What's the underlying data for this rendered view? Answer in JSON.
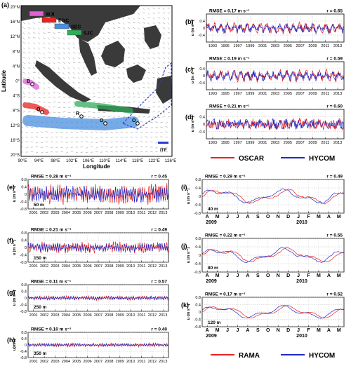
{
  "figure": {
    "colors": {
      "obs": "#e8231f",
      "model": "#1f2ac4",
      "land": "#3a3a3a",
      "sea": "#ffffff",
      "grid": "#b0b0b0"
    },
    "map": {
      "panel_label": "(a)",
      "xlabel": "Longitude",
      "ylabel": "Latitude",
      "lon_ticks": [
        "90°E",
        "94°E",
        "98°E",
        "102°E",
        "106°E",
        "110°E",
        "114°E",
        "118°E",
        "122°E",
        "126°E"
      ],
      "lat_ticks": [
        "20°N",
        "16°N",
        "12°N",
        "8°N",
        "4°N",
        "0°",
        "4°S",
        "8°S",
        "12°S",
        "16°S",
        "20°S"
      ],
      "legend": [
        {
          "label": "WJI",
          "color": "#e060d8"
        },
        {
          "label": "EGC",
          "color": "#e8231f"
        },
        {
          "label": "SEC",
          "color": "#4a8fe0"
        },
        {
          "label": "SJC",
          "color": "#2fae5a"
        }
      ],
      "itf_label": "ITF",
      "markers": [
        "B",
        "O",
        "R",
        "O",
        "O"
      ]
    },
    "top_legend": {
      "obs": "OSCAR",
      "model": "HYCOM"
    },
    "bottom_legend": {
      "obs": "RAMA",
      "model": "HYCOM"
    },
    "yunit": "u (m s⁻¹)",
    "yunit_h": "u(m/s)",
    "years_long": [
      "1993",
      "1995",
      "1997",
      "1999",
      "2001",
      "2003",
      "2005",
      "2007",
      "2009",
      "2011",
      "2013"
    ],
    "years_short": [
      "2001",
      "2002",
      "2003",
      "2004",
      "2005",
      "2006",
      "2007",
      "2008",
      "2009",
      "2010",
      "2011",
      "2012",
      "2013"
    ],
    "months": [
      "A",
      "M",
      "J",
      "J",
      "A",
      "S",
      "O",
      "N",
      "D",
      "J",
      "F",
      "M",
      "A",
      "M"
    ],
    "month_years": [
      "2009",
      "2010"
    ]
  },
  "chart_data": [
    {
      "id": "b",
      "type": "line",
      "label": "(b)",
      "rmse": "RMSE = 0.17 m s⁻¹",
      "r": "r = 0.65",
      "ylim": [
        -0.8,
        0.8
      ],
      "yticks": [
        "0.4",
        "0",
        "-0.4"
      ],
      "xlim": [
        1993,
        2014
      ],
      "series": [
        {
          "name": "OSCAR",
          "amp": 0.24,
          "freq": 2.0,
          "seed": 3
        },
        {
          "name": "HYCOM",
          "amp": 0.2,
          "freq": 2.0,
          "seed": 11
        }
      ]
    },
    {
      "id": "c",
      "type": "line",
      "label": "(c)",
      "rmse": "RMSE = 0.19 m s⁻¹",
      "r": "r = 0.59",
      "ylim": [
        -0.8,
        0.8
      ],
      "yticks": [
        "0.4",
        "0",
        "-0.4"
      ],
      "xlim": [
        1993,
        2014
      ],
      "series": [
        {
          "name": "OSCAR",
          "amp": 0.26,
          "freq": 2.0,
          "seed": 5
        },
        {
          "name": "HYCOM",
          "amp": 0.22,
          "freq": 2.0,
          "seed": 17
        }
      ]
    },
    {
      "id": "d",
      "type": "line",
      "label": "(d)",
      "rmse": "RMSE = 0.21 m s⁻¹",
      "r": "r = 0.60",
      "ylim": [
        -0.8,
        0.8
      ],
      "yticks": [
        "0.4",
        "0",
        "-0.4"
      ],
      "xlim": [
        1993,
        2014
      ],
      "series": [
        {
          "name": "OSCAR",
          "amp": 0.3,
          "freq": 2.0,
          "seed": 7
        },
        {
          "name": "HYCOM",
          "amp": 0.26,
          "freq": 2.0,
          "seed": 19
        }
      ]
    },
    {
      "id": "e",
      "type": "line",
      "label": "(e)",
      "rmse": "RMSE = 0.28 m s⁻¹",
      "r": "r = 0.45",
      "depth": "50 m",
      "ylim": [
        -0.8,
        0.8
      ],
      "yticks": [
        "0.8",
        "0.4",
        "0",
        "-0.4",
        "-0.8"
      ],
      "xlim": [
        2001,
        2014
      ],
      "series": [
        {
          "name": "RAMA",
          "amp": 0.42,
          "freq": 6.0,
          "seed": 23
        },
        {
          "name": "HYCOM",
          "amp": 0.32,
          "freq": 6.0,
          "seed": 29
        }
      ]
    },
    {
      "id": "f",
      "type": "line",
      "label": "(f)",
      "rmse": "RMSE = 0.21 m s⁻¹",
      "r": "r = 0.49",
      "depth": "150 m",
      "ylim": [
        -0.8,
        0.8
      ],
      "yticks": [
        "0.8",
        "0.4",
        "0",
        "-0.4",
        "-0.8"
      ],
      "xlim": [
        2001,
        2014
      ],
      "series": [
        {
          "name": "RAMA",
          "amp": 0.22,
          "freq": 6.0,
          "seed": 31
        },
        {
          "name": "HYCOM",
          "amp": 0.18,
          "freq": 6.0,
          "seed": 37
        }
      ]
    },
    {
      "id": "g",
      "type": "line",
      "label": "(g)",
      "rmse": "RMSE = 0.11 m s⁻¹",
      "r": "r = 0.57",
      "depth": "250 m",
      "ylim": [
        -0.8,
        0.8
      ],
      "yticks": [
        "0.8",
        "0.4",
        "0",
        "-0.4",
        "-0.8"
      ],
      "xlim": [
        2001,
        2014
      ],
      "series": [
        {
          "name": "RAMA",
          "amp": 0.1,
          "freq": 6.0,
          "seed": 41
        },
        {
          "name": "HYCOM",
          "amp": 0.08,
          "freq": 6.0,
          "seed": 43
        }
      ]
    },
    {
      "id": "h",
      "type": "line",
      "label": "(h)",
      "rmse": "RMSE = 0.10 m s⁻¹",
      "r": "r = 0.40",
      "depth": "350 m",
      "ylim": [
        -0.8,
        0.8
      ],
      "yticks": [
        "0.8",
        "0.4",
        "0",
        "-0.4",
        "-0.8"
      ],
      "xlim": [
        2001,
        2014
      ],
      "series": [
        {
          "name": "RAMA",
          "amp": 0.09,
          "freq": 6.0,
          "seed": 47
        },
        {
          "name": "HYCOM",
          "amp": 0.07,
          "freq": 6.0,
          "seed": 53
        }
      ]
    },
    {
      "id": "i",
      "type": "line",
      "label": "(i)",
      "rmse": "RMSE = 0.29 m s⁻¹",
      "r": "r = 0.49",
      "depth": "40 m",
      "ylim": [
        -0.8,
        0.8
      ],
      "yticks": [
        "0.8",
        "0.4",
        "0",
        "-0.4",
        "-0.8"
      ],
      "xlim": [
        0,
        14
      ],
      "series": [
        {
          "name": "RAMA",
          "amp": 0.3,
          "freq": 0.0,
          "seed": 59
        },
        {
          "name": "HYCOM",
          "amp": 0.26,
          "freq": 0.0,
          "seed": 61
        }
      ]
    },
    {
      "id": "j",
      "type": "line",
      "label": "(j)",
      "rmse": "RMSE = 0.22 m s⁻¹",
      "r": "r = 0.55",
      "depth": "80 m",
      "ylim": [
        -0.8,
        0.8
      ],
      "yticks": [
        "0.8",
        "0.4",
        "0",
        "-0.4",
        "-0.8"
      ],
      "xlim": [
        0,
        14
      ],
      "series": [
        {
          "name": "RAMA",
          "amp": 0.24,
          "freq": 0.0,
          "seed": 67
        },
        {
          "name": "HYCOM",
          "amp": 0.22,
          "freq": 0.0,
          "seed": 71
        }
      ]
    },
    {
      "id": "k",
      "type": "line",
      "label": "(k)",
      "rmse": "RMSE = 0.17 m s⁻¹",
      "r": "r = 0.52",
      "depth": "120 m",
      "ylim": [
        -0.8,
        0.8
      ],
      "yticks": [
        "0.8",
        "0.4",
        "0",
        "-0.4",
        "-0.8"
      ],
      "xlim": [
        0,
        14
      ],
      "series": [
        {
          "name": "RAMA",
          "amp": 0.14,
          "freq": 0.0,
          "seed": 73
        },
        {
          "name": "HYCOM",
          "amp": 0.12,
          "freq": 0.0,
          "seed": 79
        }
      ]
    }
  ]
}
